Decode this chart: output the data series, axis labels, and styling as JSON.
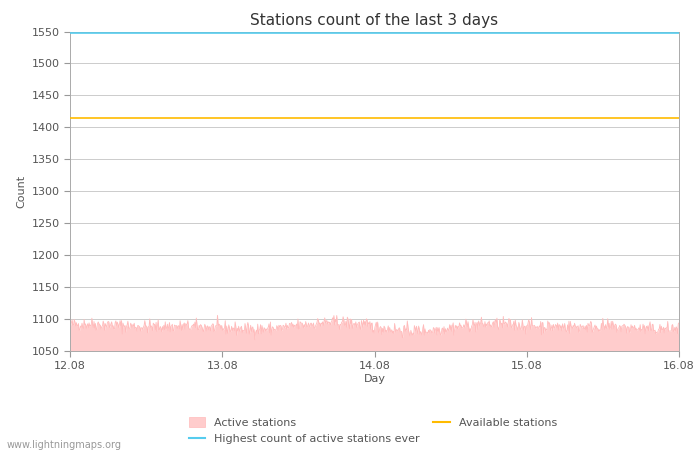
{
  "title": "Stations count of the last 3 days",
  "xlabel": "Day",
  "ylabel": "Count",
  "ylim": [
    1050,
    1550
  ],
  "yticks": [
    1050,
    1100,
    1150,
    1200,
    1250,
    1300,
    1350,
    1400,
    1450,
    1500,
    1550
  ],
  "x_tick_labels": [
    "12.08",
    "13.08",
    "14.08",
    "15.08",
    "16.08"
  ],
  "x_tick_positions": [
    0.0,
    0.25,
    0.5,
    0.75,
    1.0
  ],
  "highest_count_value": 1547,
  "available_stations_value": 1415,
  "active_stations_base": 1050,
  "active_stations_mean": 1088,
  "active_stations_color_fill": "#ffcccc",
  "active_stations_color_line": "#ffbbbb",
  "highest_count_color": "#55ccee",
  "available_stations_color": "#ffbb00",
  "background_color": "#ffffff",
  "grid_color": "#cccccc",
  "title_fontsize": 11,
  "axis_fontsize": 8,
  "tick_fontsize": 8,
  "legend_fontsize": 8,
  "watermark": "www.lightningmaps.org",
  "n_points": 864,
  "active_min": 1058,
  "active_max": 1108,
  "noise_seed": 42
}
